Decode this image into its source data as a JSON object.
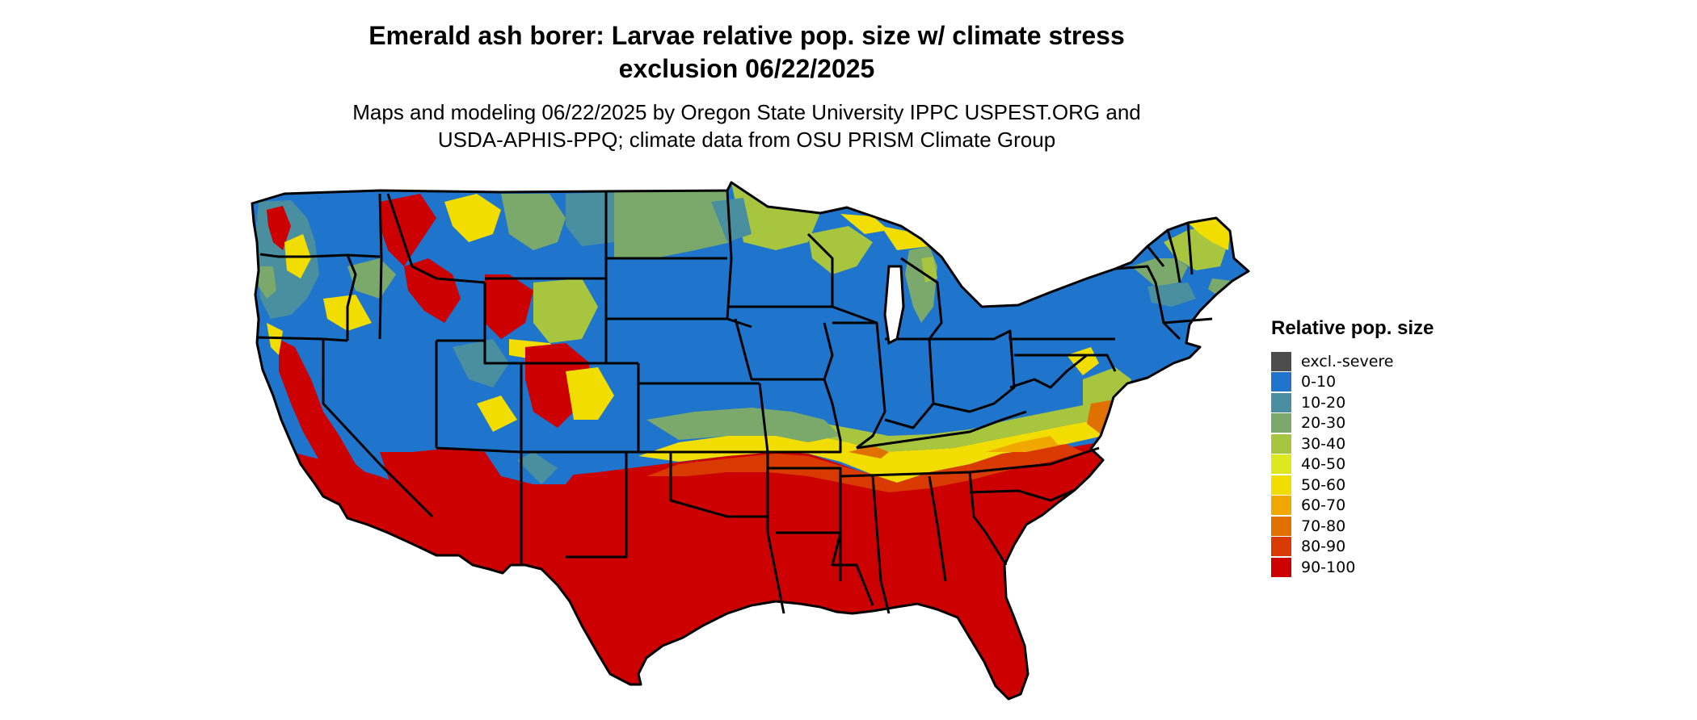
{
  "title_line1": "Emerald ash borer: Larvae relative pop. size w/ climate stress",
  "title_line2": "exclusion 06/22/2025",
  "subtitle_line1": "Maps and modeling 06/22/2025 by Oregon State University IPPC USPEST.ORG and",
  "subtitle_line2": "USDA-APHIS-PPQ; climate data from OSU PRISM Climate Group",
  "legend": {
    "title": "Relative pop. size",
    "items": [
      {
        "label": "excl.-severe",
        "color": "#4d4d4d"
      },
      {
        "label": "0-10",
        "color": "#1f74cc"
      },
      {
        "label": "10-20",
        "color": "#4a8fa0"
      },
      {
        "label": "20-30",
        "color": "#7aa96b"
      },
      {
        "label": "30-40",
        "color": "#a8c53f"
      },
      {
        "label": "40-50",
        "color": "#dde81e"
      },
      {
        "label": "50-60",
        "color": "#f2dd00"
      },
      {
        "label": "60-70",
        "color": "#f0a800"
      },
      {
        "label": "70-80",
        "color": "#e07000"
      },
      {
        "label": "80-90",
        "color": "#d93a00"
      },
      {
        "label": "90-100",
        "color": "#cc0000"
      }
    ]
  }
}
